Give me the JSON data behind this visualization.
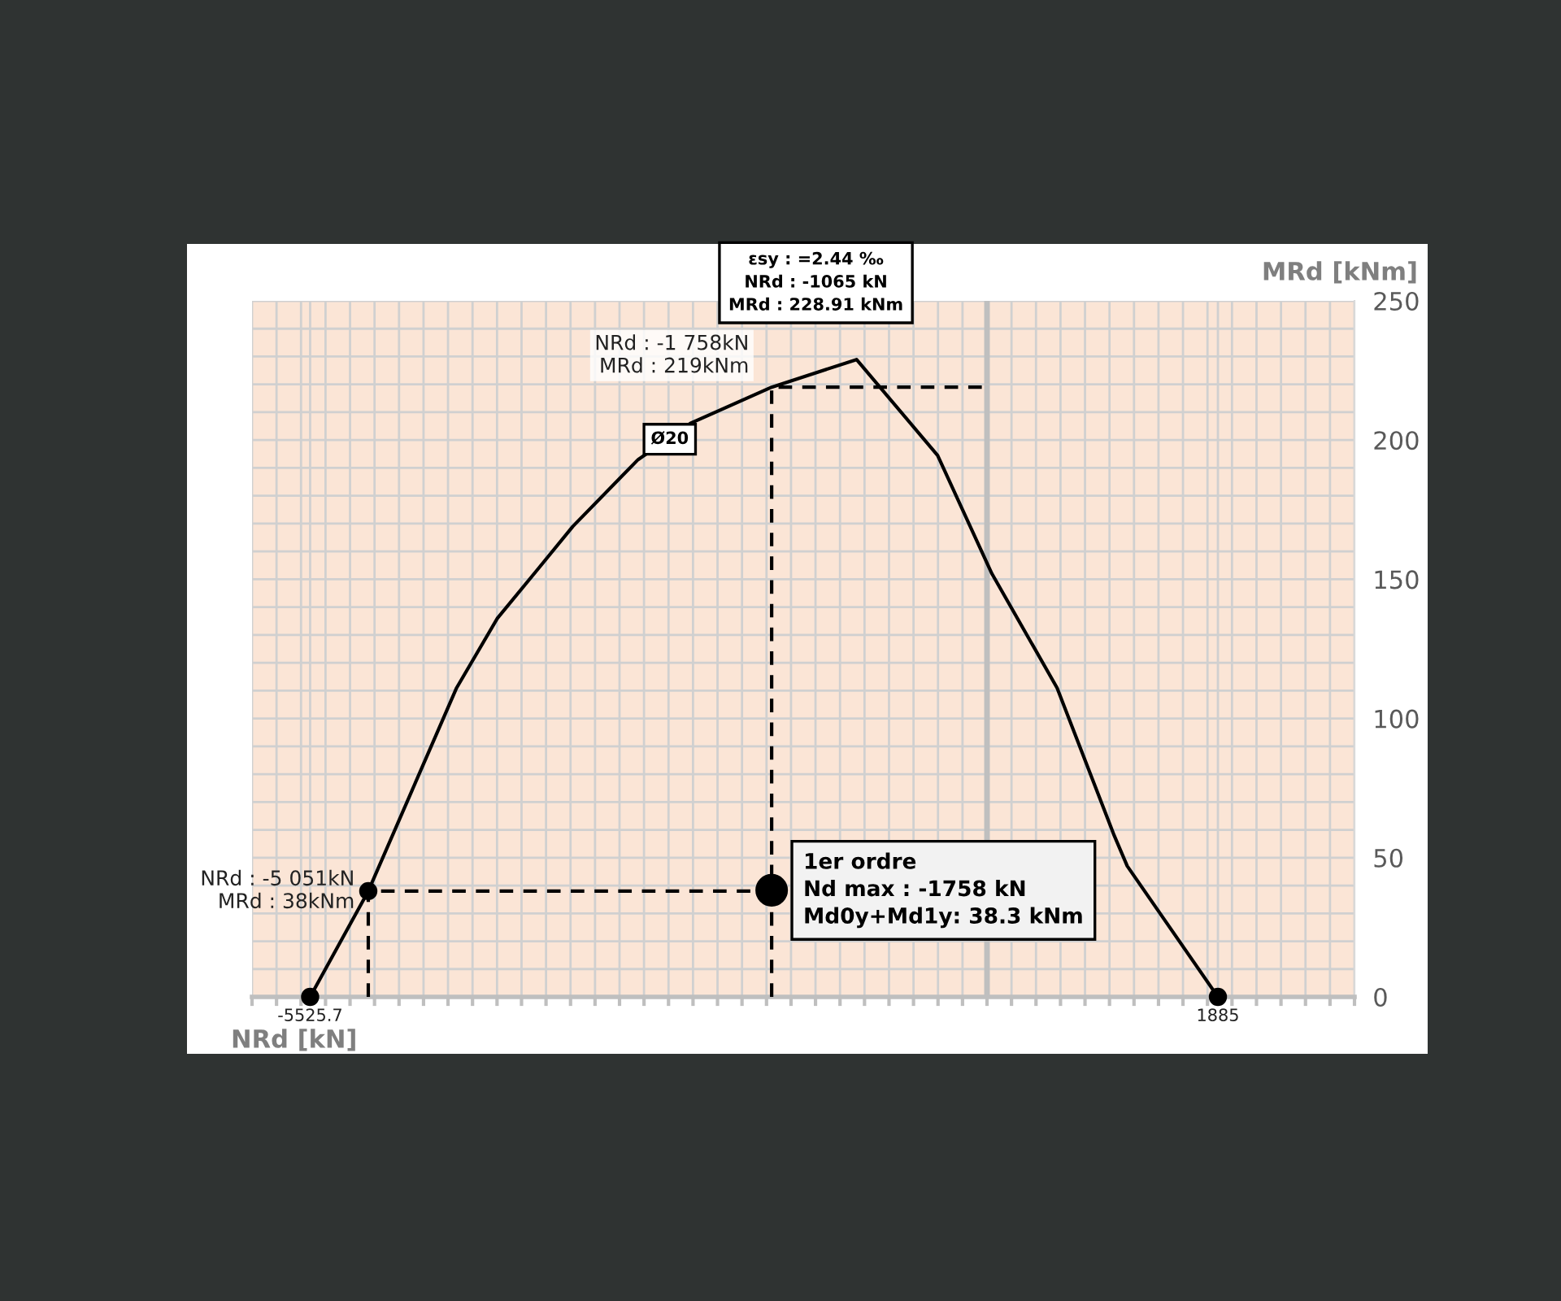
{
  "chart_data": {
    "type": "line",
    "xlabel": "NRd [kN]",
    "ylabel": "MRd [kNm]",
    "xlim": [
      -6000,
      3000
    ],
    "ylim": [
      0,
      250
    ],
    "xticks": [
      {
        "value": -6000,
        "label": null
      },
      {
        "value": -5800,
        "label": null
      },
      {
        "value": -5600,
        "label": null
      },
      {
        "value": -5525.7,
        "label": "-5525.7"
      },
      {
        "value": -5400,
        "label": null
      },
      {
        "value": -5200,
        "label": null
      },
      {
        "value": -5000,
        "label": null
      },
      {
        "value": -4800,
        "label": null
      },
      {
        "value": -4600,
        "label": null
      },
      {
        "value": -4400,
        "label": null
      },
      {
        "value": -4200,
        "label": null
      },
      {
        "value": -4000,
        "label": null
      },
      {
        "value": -3800,
        "label": null
      },
      {
        "value": -3600,
        "label": null
      },
      {
        "value": -3400,
        "label": null
      },
      {
        "value": -3200,
        "label": null
      },
      {
        "value": -3000,
        "label": null
      },
      {
        "value": -2800,
        "label": null
      },
      {
        "value": -2600,
        "label": null
      },
      {
        "value": -2400,
        "label": null
      },
      {
        "value": -2200,
        "label": null
      },
      {
        "value": -2000,
        "label": null
      },
      {
        "value": -1800,
        "label": null
      },
      {
        "value": -1600,
        "label": null
      },
      {
        "value": -1400,
        "label": null
      },
      {
        "value": -1200,
        "label": null
      },
      {
        "value": -1000,
        "label": null
      },
      {
        "value": -800,
        "label": null
      },
      {
        "value": -600,
        "label": null
      },
      {
        "value": -400,
        "label": null
      },
      {
        "value": -200,
        "label": null
      },
      {
        "value": 0,
        "label": null
      },
      {
        "value": 200,
        "label": null
      },
      {
        "value": 400,
        "label": null
      },
      {
        "value": 600,
        "label": null
      },
      {
        "value": 800,
        "label": null
      },
      {
        "value": 1000,
        "label": null
      },
      {
        "value": 1200,
        "label": null
      },
      {
        "value": 1400,
        "label": null
      },
      {
        "value": 1600,
        "label": null
      },
      {
        "value": 1800,
        "label": null
      },
      {
        "value": 1885,
        "label": "1885"
      },
      {
        "value": 2000,
        "label": null
      },
      {
        "value": 2200,
        "label": null
      },
      {
        "value": 2400,
        "label": null
      },
      {
        "value": 2600,
        "label": null
      },
      {
        "value": 2800,
        "label": null
      },
      {
        "value": 3000,
        "label": null
      }
    ],
    "yticks": [
      0,
      {
        "value": 10,
        "label": null
      },
      {
        "value": 20,
        "label": null
      },
      {
        "value": 30,
        "label": null
      },
      {
        "value": 40,
        "label": null
      },
      50,
      {
        "value": 60,
        "label": null
      },
      {
        "value": 70,
        "label": null
      },
      {
        "value": 80,
        "label": null
      },
      {
        "value": 90,
        "label": null
      },
      100,
      {
        "value": 110,
        "label": null
      },
      {
        "value": 120,
        "label": null
      },
      {
        "value": 130,
        "label": null
      },
      {
        "value": 140,
        "label": null
      },
      150,
      {
        "value": 160,
        "label": null
      },
      {
        "value": 170,
        "label": null
      },
      {
        "value": 180,
        "label": null
      },
      {
        "value": 190,
        "label": null
      },
      200,
      {
        "value": 210,
        "label": null
      },
      {
        "value": 220,
        "label": null
      },
      {
        "value": 230,
        "label": null
      },
      {
        "value": 240,
        "label": null
      },
      250
    ],
    "grid": true,
    "ref_lines": [
      {
        "axis": "x",
        "value": 0,
        "label": null,
        "color": "#bfbfbf"
      }
    ],
    "series": [
      {
        "color": "#000000",
        "line_style": "solid",
        "marker": "none",
        "x": [
          -5525.7,
          -5051,
          -4330,
          -3997,
          -3660,
          -3381,
          -2848,
          -2422,
          -1758,
          -1065,
          -403,
          40,
          572,
          1038,
          1145,
          1885
        ],
        "values": [
          0,
          38,
          111,
          136,
          154,
          169,
          193,
          206,
          219,
          228.91,
          194.5,
          152,
          111,
          58,
          47,
          0
        ]
      },
      {
        "color": "#000000",
        "line_style": "dashed",
        "marker": "none",
        "x": [
          -5051,
          -5051,
          -1758
        ],
        "values": [
          0,
          38,
          38
        ]
      },
      {
        "color": "#000000",
        "line_style": "dashed",
        "marker": "none",
        "x": [
          -1758,
          -1758,
          0
        ],
        "values": [
          0,
          219,
          219
        ]
      },
      {
        "type": "scatter",
        "color": "#000000",
        "marker": "circle",
        "x": [
          -5525.7,
          -5051,
          1885
        ],
        "values": [
          0,
          38,
          0
        ]
      },
      {
        "type": "scatter",
        "color": "#000000",
        "marker": "circle",
        "x": [
          -1758
        ],
        "values": [
          38.3
        ]
      }
    ],
    "annotations": [
      {
        "text": "NRd : -5 051kN\nMRd : 38kNm",
        "x": -5051,
        "y": 38
      },
      {
        "text": "NRd : -1 758kN\nMRd : 219kNm",
        "x": -1758,
        "y": 219
      },
      {
        "text": "εsy : =2.44 ‰\nNRd : -1065 kN\nMRd : 228.91 kNm",
        "x": -1065,
        "y": 228.91
      },
      {
        "text": "Ø20",
        "x": -2848,
        "y": 193
      },
      {
        "text": "1er ordre\nNd max : -1758 kN\nMd0y+Md1y: 38.3 kNm",
        "x": -1758,
        "y": 38.3
      }
    ]
  }
}
